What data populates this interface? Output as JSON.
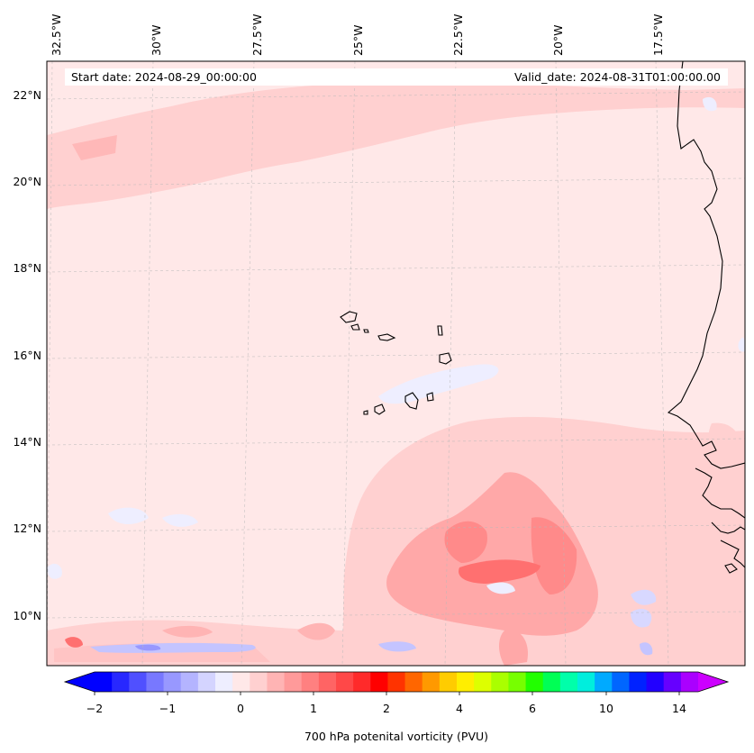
{
  "header": {
    "start_date": "Start date: 2024-08-29_00:00:00",
    "valid_date": "Valid_date: 2024-08-31T01:00:00.00"
  },
  "axes": {
    "lon_labels": [
      "32.5°W",
      "30°W",
      "27.5°W",
      "25°W",
      "22.5°W",
      "20°W",
      "17.5°W"
    ],
    "lat_labels": [
      "22°N",
      "20°N",
      "18°N",
      "16°N",
      "14°N",
      "12°N",
      "10°N"
    ]
  },
  "colorbar": {
    "title": "700 hPa potenital vorticity (PVU)",
    "tick_labels": [
      "−2",
      "−1",
      "0",
      "1",
      "2",
      "4",
      "6",
      "10",
      "14"
    ],
    "colors": [
      "#0000ff",
      "#2828ff",
      "#5050ff",
      "#7878ff",
      "#9898ff",
      "#b4b4ff",
      "#d4d4ff",
      "#eeeeff",
      "#ffe8e8",
      "#ffd0d0",
      "#ffb4b4",
      "#ff9a9a",
      "#ff8080",
      "#ff6464",
      "#ff4848",
      "#ff2a2a",
      "#ff0000",
      "#ff3300",
      "#ff6600",
      "#ff9900",
      "#ffcc00",
      "#ffee00",
      "#ddff00",
      "#aaff00",
      "#77ff00",
      "#22ff00",
      "#00ff55",
      "#00ffaa",
      "#00eedd",
      "#00aaff",
      "#0066ff",
      "#0022ff",
      "#2200ff",
      "#6600ff",
      "#aa00ff"
    ],
    "under_color": "#0000ff",
    "over_color": "#cc00ff"
  },
  "map": {
    "background_color": "#ffe8e8",
    "coastline_color": "#000000"
  }
}
